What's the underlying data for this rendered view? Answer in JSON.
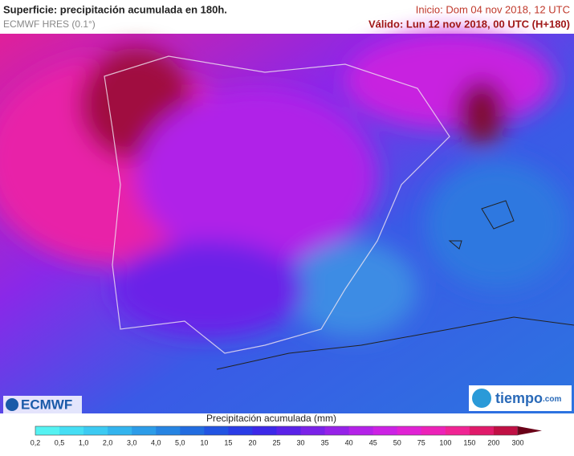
{
  "header": {
    "title": "Superficie: precipitación acumulada en 180h.",
    "model": "ECMWF HRES (0.1°)",
    "init": "Inicio: Dom 04 nov 2018, 12 UTC",
    "valid": "Válido: Lun 12 nov 2018, 00 UTC (H+180)"
  },
  "logos": {
    "left": "ECMWF",
    "right": "tiempo",
    "right_suffix": ".com"
  },
  "legend": {
    "title": "Precipitación acumulada (mm)",
    "ticks": [
      "0,2",
      "0,5",
      "1,0",
      "2,0",
      "3,0",
      "4,0",
      "5,0",
      "10",
      "15",
      "20",
      "25",
      "30",
      "35",
      "40",
      "45",
      "50",
      "75",
      "100",
      "150",
      "200",
      "300"
    ],
    "colors": [
      "#55f2f2",
      "#45def4",
      "#3ccaf2",
      "#33b4ee",
      "#2c9ce8",
      "#2684e2",
      "#226ce0",
      "#2254e2",
      "#2a3ce6",
      "#3c28e8",
      "#5a22e8",
      "#7a22e8",
      "#9622e8",
      "#b422e8",
      "#cc22e4",
      "#e022d4",
      "#ec22b8",
      "#f02494",
      "#e01a6a",
      "#c01044",
      "#6a0018"
    ]
  }
}
